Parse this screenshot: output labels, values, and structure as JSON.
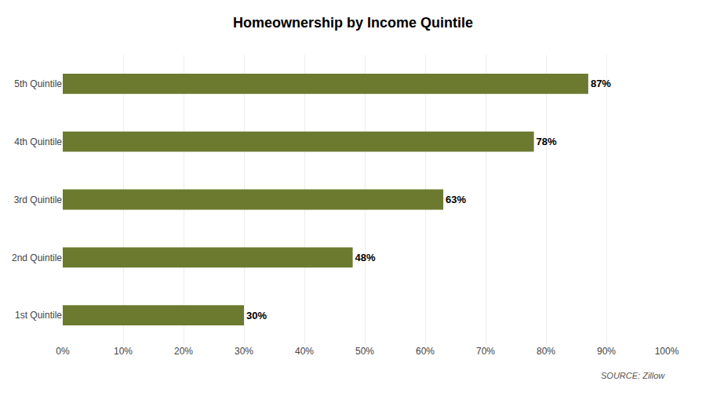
{
  "chart_data": {
    "type": "bar",
    "orientation": "horizontal",
    "title": "Homeownership by Income Quintile",
    "categories": [
      "1st Quintile",
      "2nd Quintile",
      "3rd Quintile",
      "4th Quintile",
      "5th Quintile"
    ],
    "values": [
      0.3,
      0.48,
      0.63,
      0.78,
      0.87
    ],
    "value_labels": [
      "30%",
      "48%",
      "63%",
      "78%",
      "87%"
    ],
    "data_labels": true,
    "color": "#6b7a2e",
    "xlim": [
      0,
      1.0
    ],
    "xticks": [
      {
        "value": 0.0,
        "label": "0%"
      },
      {
        "value": 0.1,
        "label": "10%"
      },
      {
        "value": 0.2,
        "label": "20%"
      },
      {
        "value": 0.3,
        "label": "30%"
      },
      {
        "value": 0.4,
        "label": "40%"
      },
      {
        "value": 0.5,
        "label": "50%"
      },
      {
        "value": 0.6,
        "label": "60%"
      },
      {
        "value": 0.7,
        "label": "70%"
      },
      {
        "value": 0.8,
        "label": "80%"
      },
      {
        "value": 0.9,
        "label": "90%"
      },
      {
        "value": 1.0,
        "label": "100%"
      }
    ],
    "grid": true,
    "annotations": [
      "SOURCE: Zillow"
    ]
  }
}
